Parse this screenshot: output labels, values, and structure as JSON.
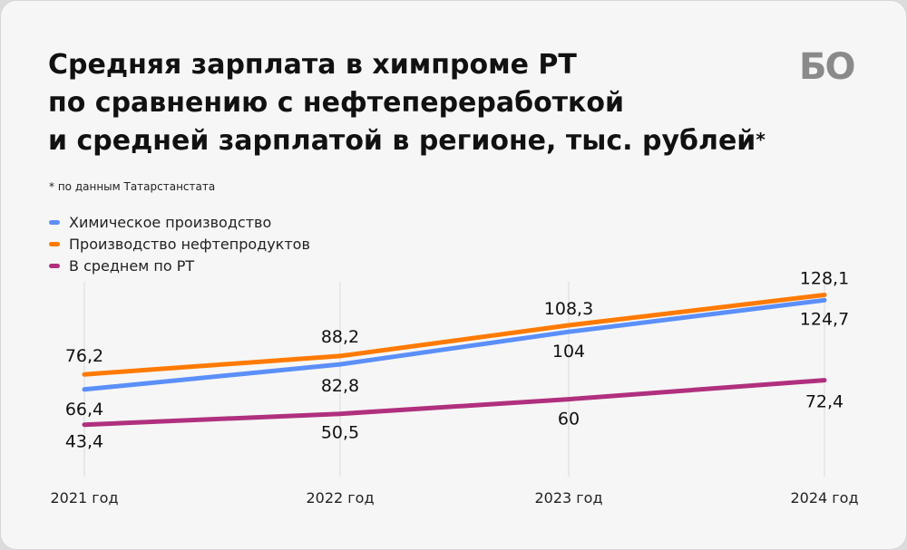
{
  "title_lines": [
    "Средняя зарплата в химпроме РТ",
    "по сравнению с нефтепереработкой",
    "и средней зарплатой в регионе, тыс. рублей"
  ],
  "title_mark": "*",
  "logo_text": "БО",
  "footnote": "* по данным Татарстанстата",
  "chart_data": {
    "type": "line",
    "title": "Средняя зарплата в химпроме РТ по сравнению с нефтепереработкой и средней зарплатой в регионе, тыс. рублей*",
    "categories": [
      "2021 год",
      "2022 год",
      "2023 год",
      "2024 год"
    ],
    "series": [
      {
        "name": "Химическое производство",
        "color": "#5b8ff9",
        "values": [
          66.4,
          82.8,
          104,
          124.7
        ],
        "labels": [
          "66,4",
          "82,8",
          "104",
          "124,7"
        ]
      },
      {
        "name": "Производство нефтепродуктов",
        "color": "#ff7a00",
        "values": [
          76.2,
          88.2,
          108.3,
          128.1
        ],
        "labels": [
          "76,2",
          "88,2",
          "108,3",
          "128,1"
        ]
      },
      {
        "name": "В среднем по РТ",
        "color": "#b0307e",
        "values": [
          43.4,
          50.5,
          60,
          72.4
        ],
        "labels": [
          "43,4",
          "50,5",
          "60",
          "72,4"
        ]
      }
    ],
    "xlabel": "",
    "ylabel": "",
    "grid": "vertical",
    "legend": "top-left"
  }
}
